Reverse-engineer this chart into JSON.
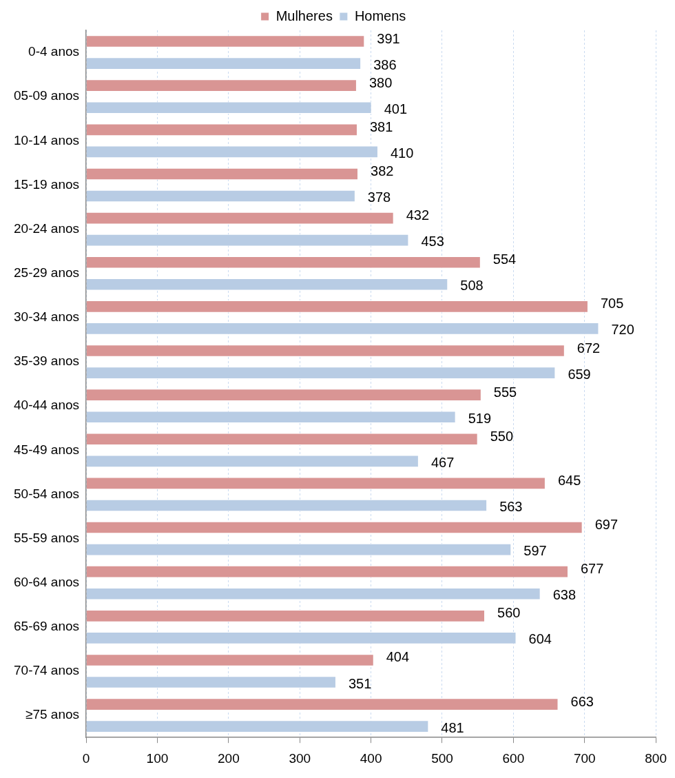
{
  "chart_data": {
    "type": "bar",
    "orientation": "horizontal",
    "categories": [
      "0-4 anos",
      "05-09 anos",
      "10-14 anos",
      "15-19 anos",
      "20-24 anos",
      "25-29 anos",
      "30-34 anos",
      "35-39 anos",
      "40-44 anos",
      "45-49 anos",
      "50-54 anos",
      "55-59 anos",
      "60-64 anos",
      "65-69 anos",
      "70-74 anos",
      "≥75 anos"
    ],
    "series": [
      {
        "name": "Mulheres",
        "color": "#d99594",
        "values": [
          391,
          380,
          381,
          382,
          432,
          554,
          705,
          672,
          555,
          550,
          645,
          697,
          677,
          560,
          404,
          663
        ]
      },
      {
        "name": "Homens",
        "color": "#b8cce4",
        "values": [
          386,
          401,
          410,
          378,
          453,
          508,
          720,
          659,
          519,
          467,
          563,
          597,
          638,
          604,
          351,
          481
        ]
      }
    ],
    "xlim": [
      0,
      800
    ],
    "xticks": [
      0,
      100,
      200,
      300,
      400,
      500,
      600,
      700,
      800
    ],
    "grid": "x",
    "legend": "top",
    "data_labels": true
  }
}
